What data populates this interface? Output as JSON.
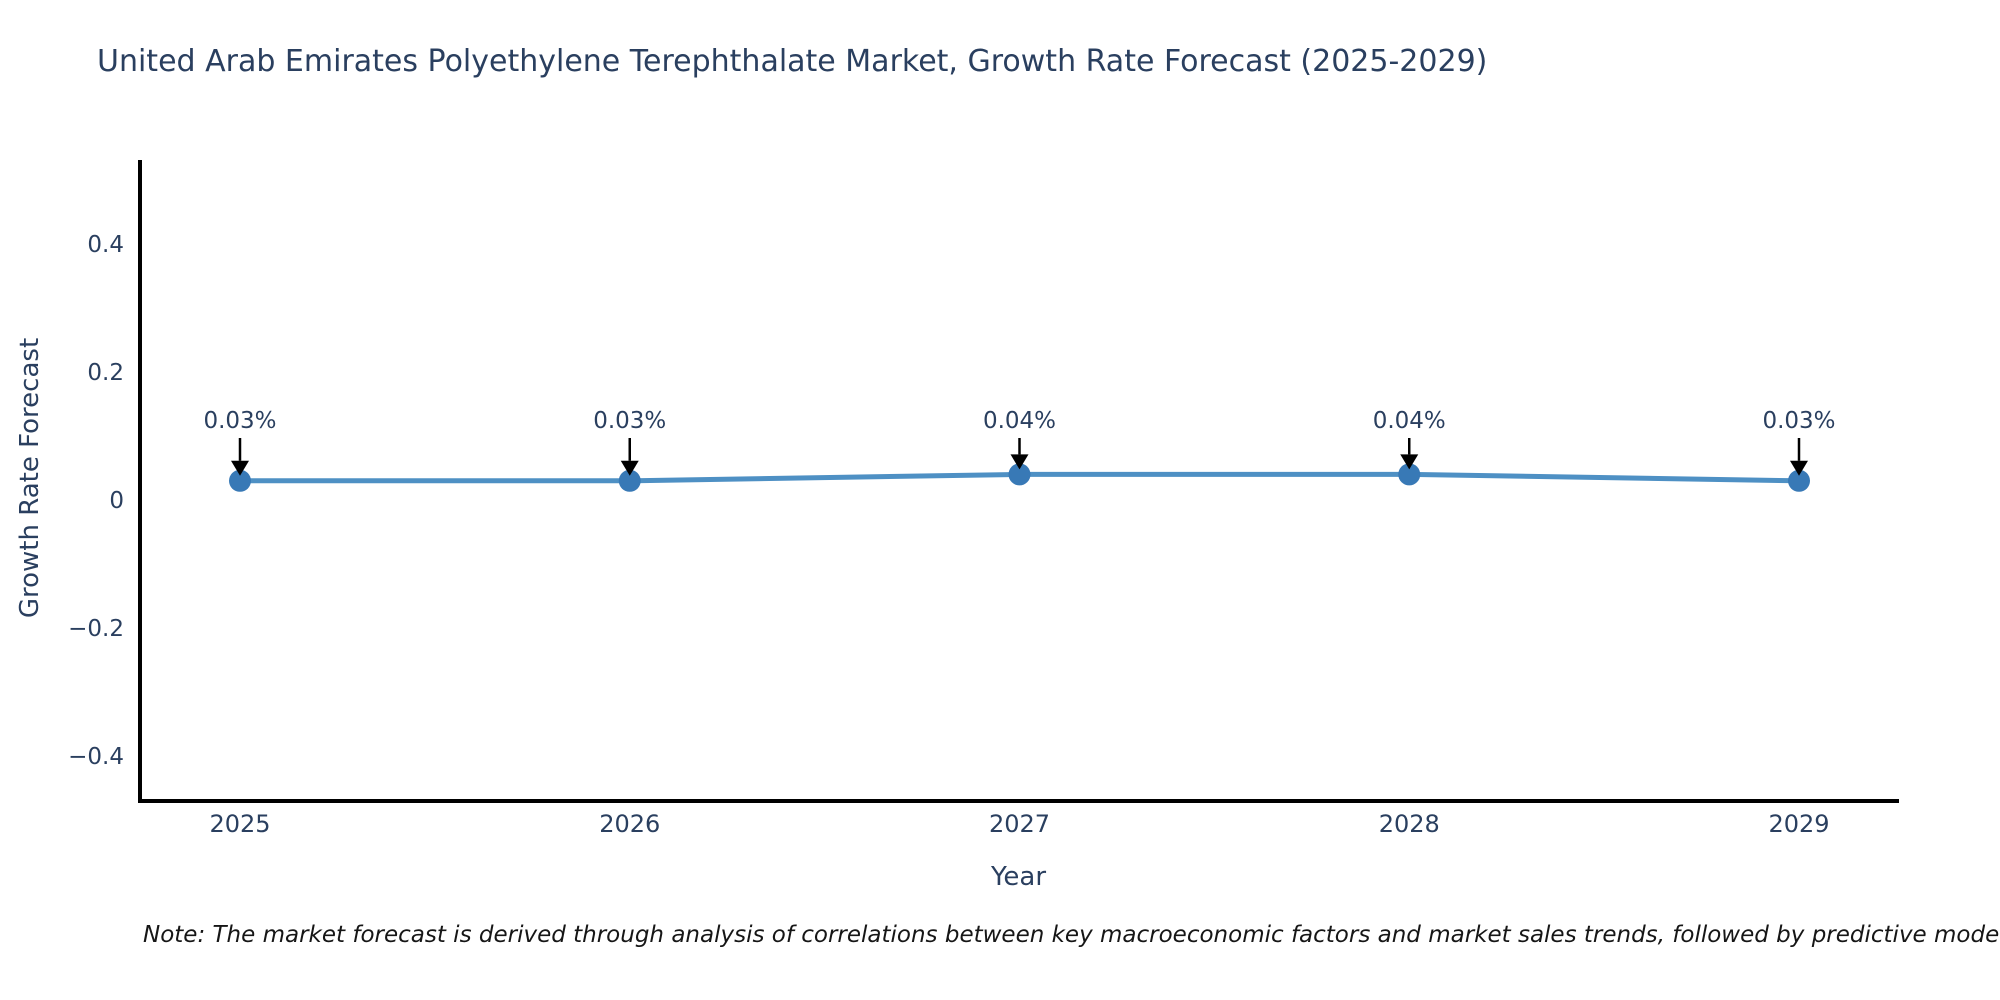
{
  "chart_data": {
    "type": "line",
    "title": "United Arab Emirates Polyethylene Terephthalate Market, Growth Rate Forecast (2025-2029)",
    "x": [
      "2025",
      "2026",
      "2027",
      "2028",
      "2029"
    ],
    "values": [
      0.03,
      0.03,
      0.04,
      0.04,
      0.03
    ],
    "point_labels": [
      "0.03%",
      "0.03%",
      "0.04%",
      "0.04%",
      "0.03%"
    ],
    "xlabel": "Year",
    "ylabel": "Growth Rate Forecast",
    "yticks": [
      0.4,
      0.2,
      0,
      -0.2,
      -0.4
    ],
    "ytick_labels": [
      "0.4",
      "0.2",
      "0",
      "−0.2",
      "−0.4"
    ],
    "ylim": [
      -0.47,
      0.53
    ],
    "grid": false,
    "legend": false,
    "colors": {
      "line": "#4e90c4",
      "marker": "#3879b6",
      "arrow": "#000000",
      "axis": "#000000",
      "tick_text": "#2a3f5f",
      "annotation_text": "#2a3f5f",
      "title_text": "#2a3f5f"
    }
  },
  "note": "Note: The market forecast is derived through analysis of correlations between key macroeconomic factors and market sales trends, followed by predictive modeling to project future sales"
}
